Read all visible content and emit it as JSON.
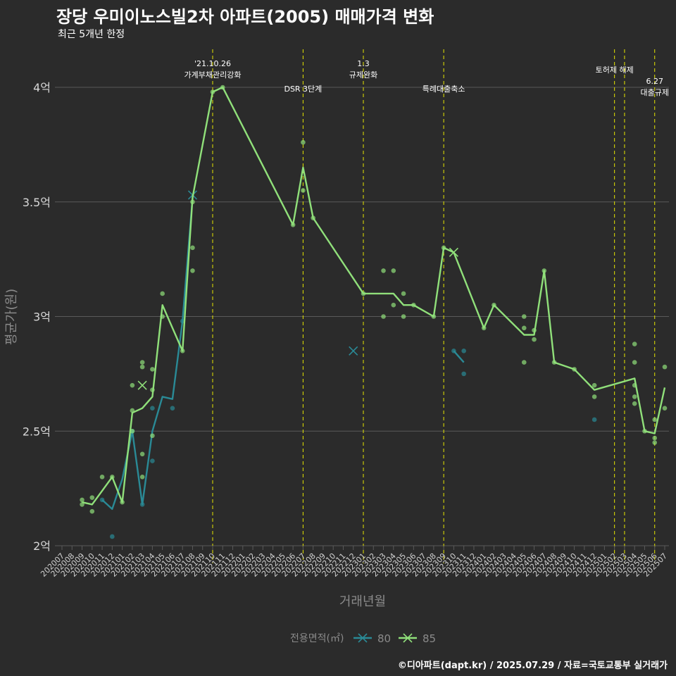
{
  "title": "장당 우미이노스빌2차 아파트(2005) 매매가격 변화",
  "subtitle": "최근 5개년 한정",
  "caption": "©디아파트(dapt.kr) / 2025.07.29 / 자료=국토교통부 실거래가",
  "colors": {
    "background": "#2b2b2b",
    "grid": "#5a5a5a",
    "event_line": "#e6e600",
    "series_80": "#2a8a96",
    "series_85": "#90e07a"
  },
  "chart_data": {
    "type": "line",
    "xlabel": "거래년월",
    "ylabel": "평균가(원)",
    "categories": [
      "202007",
      "202008",
      "202009",
      "202010",
      "202011",
      "202012",
      "202101",
      "202102",
      "202103",
      "202104",
      "202105",
      "202106",
      "202107",
      "202108",
      "202109",
      "202110",
      "202111",
      "202112",
      "202201",
      "202202",
      "202203",
      "202204",
      "202205",
      "202206",
      "202207",
      "202208",
      "202209",
      "202210",
      "202211",
      "202212",
      "202301",
      "202302",
      "202303",
      "202304",
      "202305",
      "202306",
      "202307",
      "202308",
      "202309",
      "202310",
      "202311",
      "202312",
      "202401",
      "202402",
      "202403",
      "202404",
      "202405",
      "202406",
      "202407",
      "202408",
      "202409",
      "202410",
      "202411",
      "202412",
      "202501",
      "202502",
      "202503",
      "202504",
      "202505",
      "202506",
      "202507"
    ],
    "y_ticks": [
      {
        "value": 2.0,
        "label": "2억"
      },
      {
        "value": 2.5,
        "label": "2.5억"
      },
      {
        "value": 3.0,
        "label": "3억"
      },
      {
        "value": 3.5,
        "label": "3.5억"
      },
      {
        "value": 4.0,
        "label": "4억"
      }
    ],
    "ylim": [
      1.96,
      4.15
    ],
    "grid": true,
    "legend": {
      "title": "전용면적(㎡)",
      "position": "bottom",
      "entries": [
        "80",
        "85"
      ]
    },
    "events": [
      {
        "x": "202110",
        "lines": [
          "'21.10.26",
          "가계부채관리강화"
        ],
        "row": "high"
      },
      {
        "x": "202207",
        "lines": [
          "DSR 3단계"
        ],
        "row": "low"
      },
      {
        "x": "202301",
        "lines": [
          "1.3",
          "규제완화"
        ],
        "row": "high"
      },
      {
        "x": "202309",
        "lines": [
          "특례대출축소"
        ],
        "row": "low"
      },
      {
        "x": "202502",
        "lines": [
          "토허제 해제"
        ],
        "row": "mid"
      },
      {
        "x": "202503",
        "lines": [],
        "row": "mid"
      },
      {
        "x": "202506",
        "lines": [
          "6.27",
          "대출규제"
        ],
        "row": "low"
      }
    ],
    "series": [
      {
        "name": "80",
        "line": [
          [
            "202011",
            2.2
          ],
          [
            "202012",
            2.16
          ],
          [
            "202101",
            2.29
          ],
          [
            "202102",
            2.5
          ],
          [
            "202103",
            2.18
          ],
          [
            "202104",
            2.5
          ],
          [
            "202105",
            2.65
          ],
          [
            "202106",
            2.64
          ],
          [
            "202107",
            2.98
          ],
          [
            "202108",
            3.52
          ]
        ],
        "line2": [
          [
            "202310",
            2.85
          ],
          [
            "202311",
            2.8
          ]
        ],
        "points": [
          [
            "202011",
            2.2
          ],
          [
            "202012",
            2.04
          ],
          [
            "202102",
            2.5
          ],
          [
            "202103",
            2.18
          ],
          [
            "202104",
            2.6
          ],
          [
            "202104",
            2.37
          ],
          [
            "202106",
            2.6
          ],
          [
            "202107",
            2.98
          ],
          [
            "202310",
            2.85
          ],
          [
            "202311",
            2.85
          ],
          [
            "202311",
            2.75
          ],
          [
            "202412",
            2.55
          ]
        ],
        "crosses": [
          [
            "202108",
            3.53
          ],
          [
            "202212",
            2.85
          ]
        ]
      },
      {
        "name": "85",
        "line": [
          [
            "202009",
            2.19
          ],
          [
            "202010",
            2.18
          ],
          [
            "202011",
            2.24
          ],
          [
            "202012",
            2.3
          ],
          [
            "202101",
            2.19
          ],
          [
            "202102",
            2.58
          ],
          [
            "202103",
            2.6
          ],
          [
            "202104",
            2.65
          ],
          [
            "202105",
            3.05
          ],
          [
            "202107",
            2.85
          ],
          [
            "202108",
            3.52
          ],
          [
            "202110",
            3.98
          ],
          [
            "202111",
            4.0
          ],
          [
            "202206",
            3.4
          ],
          [
            "202207",
            3.65
          ],
          [
            "202208",
            3.43
          ],
          [
            "202301",
            3.1
          ],
          [
            "202304",
            3.1
          ],
          [
            "202305",
            3.05
          ],
          [
            "202306",
            3.05
          ],
          [
            "202308",
            3.0
          ],
          [
            "202309",
            3.3
          ],
          [
            "202310",
            3.28
          ],
          [
            "202401",
            2.95
          ],
          [
            "202402",
            3.05
          ],
          [
            "202405",
            2.92
          ],
          [
            "202406",
            2.92
          ],
          [
            "202407",
            3.2
          ],
          [
            "202408",
            2.8
          ],
          [
            "202410",
            2.77
          ],
          [
            "202412",
            2.68
          ],
          [
            "202504",
            2.73
          ],
          [
            "202505",
            2.5
          ],
          [
            "202506",
            2.49
          ],
          [
            "202507",
            2.69
          ]
        ],
        "points": [
          [
            "202009",
            2.2
          ],
          [
            "202009",
            2.18
          ],
          [
            "202010",
            2.15
          ],
          [
            "202010",
            2.21
          ],
          [
            "202011",
            2.3
          ],
          [
            "202012",
            2.3
          ],
          [
            "202101",
            2.19
          ],
          [
            "202102",
            2.7
          ],
          [
            "202102",
            2.59
          ],
          [
            "202102",
            2.5
          ],
          [
            "202103",
            2.8
          ],
          [
            "202103",
            2.78
          ],
          [
            "202103",
            2.4
          ],
          [
            "202103",
            2.3
          ],
          [
            "202104",
            2.77
          ],
          [
            "202104",
            2.68
          ],
          [
            "202104",
            2.48
          ],
          [
            "202105",
            3.1
          ],
          [
            "202105",
            3.0
          ],
          [
            "202107",
            2.85
          ],
          [
            "202108",
            3.5
          ],
          [
            "202108",
            3.3
          ],
          [
            "202108",
            3.2
          ],
          [
            "202110",
            3.98
          ],
          [
            "202111",
            4.0
          ],
          [
            "202206",
            3.4
          ],
          [
            "202207",
            3.76
          ],
          [
            "202207",
            3.55
          ],
          [
            "202208",
            3.43
          ],
          [
            "202301",
            3.1
          ],
          [
            "202303",
            3.2
          ],
          [
            "202303",
            3.0
          ],
          [
            "202304",
            3.2
          ],
          [
            "202304",
            3.05
          ],
          [
            "202305",
            3.1
          ],
          [
            "202305",
            3.0
          ],
          [
            "202306",
            3.05
          ],
          [
            "202308",
            3.0
          ],
          [
            "202309",
            3.3
          ],
          [
            "202402",
            3.05
          ],
          [
            "202401",
            2.95
          ],
          [
            "202405",
            3.0
          ],
          [
            "202405",
            2.95
          ],
          [
            "202405",
            2.8
          ],
          [
            "202406",
            2.94
          ],
          [
            "202406",
            2.9
          ],
          [
            "202407",
            3.2
          ],
          [
            "202408",
            2.8
          ],
          [
            "202410",
            2.77
          ],
          [
            "202412",
            2.7
          ],
          [
            "202412",
            2.65
          ],
          [
            "202504",
            2.88
          ],
          [
            "202504",
            2.8
          ],
          [
            "202504",
            2.7
          ],
          [
            "202504",
            2.65
          ],
          [
            "202504",
            2.62
          ],
          [
            "202505",
            2.5
          ],
          [
            "202506",
            2.55
          ],
          [
            "202506",
            2.47
          ],
          [
            "202506",
            2.45
          ],
          [
            "202507",
            2.78
          ],
          [
            "202507",
            2.6
          ]
        ],
        "crosses": [
          [
            "202103",
            2.7
          ],
          [
            "202310",
            3.28
          ]
        ]
      }
    ]
  }
}
